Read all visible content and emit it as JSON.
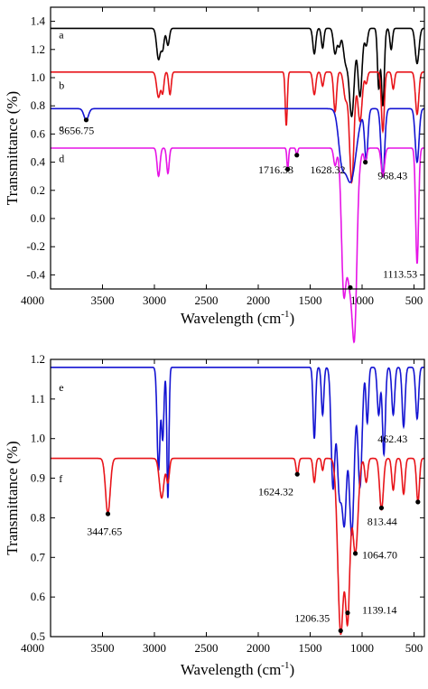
{
  "chart_data": [
    {
      "type": "line",
      "xlabel_main": "Wavelength",
      "xlabel_unit": "(cm",
      "xlabel_sup": "-1",
      "xlabel_close": ")",
      "ylabel": "Transmittance (%)",
      "xlim": [
        4000,
        400
      ],
      "ylim": [
        -0.5,
        1.5
      ],
      "x_ticks": [
        4000,
        3500,
        3000,
        2500,
        2000,
        1500,
        1000,
        500
      ],
      "y_ticks": [
        -0.4,
        -0.2,
        0.0,
        0.2,
        0.4,
        0.6,
        0.8,
        1.0,
        1.2,
        1.4
      ],
      "y_tick_labels": [
        "-0.4",
        "-0.2",
        "0.0",
        "0.2",
        "0.4",
        "0.6",
        "0.8",
        "1.0",
        "1.2",
        "1.4"
      ],
      "series": [
        {
          "name": "a",
          "color": "#000000",
          "baseline": 1.35,
          "label_at": [
            3920,
            1.28
          ],
          "dips": [
            [
              2960,
              0.22,
              18
            ],
            [
              2920,
              0.14,
              14
            ],
            [
              2870,
              0.12,
              14
            ],
            [
              1460,
              0.18,
              14
            ],
            [
              1380,
              0.14,
              12
            ],
            [
              1260,
              0.18,
              16
            ],
            [
              1220,
              0.12,
              14
            ],
            [
              1160,
              0.22,
              22
            ],
            [
              1100,
              0.62,
              25
            ],
            [
              1020,
              0.48,
              20
            ],
            [
              960,
              0.12,
              14
            ],
            [
              840,
              0.42,
              12
            ],
            [
              800,
              0.55,
              14
            ],
            [
              720,
              0.15,
              12
            ],
            [
              470,
              0.25,
              18
            ]
          ]
        },
        {
          "name": "b",
          "color": "#e8141a",
          "baseline": 1.04,
          "label_at": [
            3920,
            0.92
          ],
          "dips": [
            [
              2960,
              0.18,
              18
            ],
            [
              2920,
              0.14,
              12
            ],
            [
              2850,
              0.16,
              12
            ],
            [
              1730,
              0.38,
              10
            ],
            [
              1460,
              0.16,
              14
            ],
            [
              1380,
              0.1,
              12
            ],
            [
              1260,
              0.28,
              14
            ],
            [
              1160,
              0.18,
              18
            ],
            [
              1100,
              0.78,
              22
            ],
            [
              1020,
              0.35,
              20
            ],
            [
              960,
              0.08,
              12
            ],
            [
              800,
              0.42,
              14
            ],
            [
              700,
              0.12,
              12
            ],
            [
              470,
              0.3,
              16
            ]
          ]
        },
        {
          "name": "c",
          "color": "#1414d2",
          "baseline": 0.78,
          "label_at": [
            3920,
            0.62
          ],
          "dips": [
            [
              3657,
              0.08,
              22
            ],
            [
              1200,
              0.25,
              30
            ],
            [
              1113,
              0.52,
              55
            ],
            [
              960,
              0.35,
              16
            ],
            [
              800,
              0.48,
              18
            ],
            [
              470,
              0.38,
              18
            ]
          ]
        },
        {
          "name": "d",
          "color": "#e614e6",
          "baseline": 0.5,
          "label_at": [
            3920,
            0.4
          ],
          "dips": [
            [
              2960,
              0.2,
              14
            ],
            [
              2870,
              0.18,
              12
            ],
            [
              1716,
              0.15,
              8
            ],
            [
              1628,
              0.05,
              8
            ],
            [
              1260,
              0.12,
              14
            ],
            [
              1180,
              0.7,
              20
            ],
            [
              1113,
              0.99,
              45
            ],
            [
              1070,
              0.7,
              20
            ],
            [
              968,
              0.1,
              12
            ],
            [
              800,
              0.2,
              16
            ],
            [
              470,
              0.82,
              14
            ]
          ]
        }
      ],
      "markers": [
        {
          "x": 3656.75,
          "y": 0.7,
          "label": "3656.75",
          "label_at": [
            3920,
            0.6
          ]
        },
        {
          "x": 1716.33,
          "y": 0.35,
          "label": "1716.33",
          "label_at": [
            2000,
            0.32
          ]
        },
        {
          "x": 1628.32,
          "y": 0.45,
          "label": "1628.32",
          "label_at": [
            1500,
            0.32
          ]
        },
        {
          "x": 968.43,
          "y": 0.4,
          "label": "968.43",
          "label_at": [
            850,
            0.28
          ]
        },
        {
          "x": 1113.53,
          "y": -0.49,
          "label": "1113.53",
          "label_at": [
            800,
            -0.42
          ]
        }
      ]
    },
    {
      "type": "line",
      "xlabel_main": "Wavelength",
      "xlabel_unit": "(cm",
      "xlabel_sup": "-1",
      "xlabel_close": ")",
      "ylabel": "Transmittance (%)",
      "xlim": [
        4000,
        400
      ],
      "ylim": [
        0.5,
        1.2
      ],
      "x_ticks": [
        4000,
        3500,
        3000,
        2500,
        2000,
        1500,
        1000,
        500
      ],
      "y_ticks": [
        0.5,
        0.6,
        0.7,
        0.8,
        0.9,
        1.0,
        1.1,
        1.2
      ],
      "y_tick_labels": [
        "0.5",
        "0.6",
        "0.7",
        "0.8",
        "0.9",
        "1.0",
        "1.1",
        "1.2"
      ],
      "series": [
        {
          "name": "e",
          "color": "#1414d2",
          "baseline": 1.18,
          "label_at": [
            3920,
            1.12
          ],
          "dips": [
            [
              2960,
              0.26,
              14
            ],
            [
              2920,
              0.18,
              12
            ],
            [
              2870,
              0.33,
              10
            ],
            [
              1460,
              0.18,
              12
            ],
            [
              1380,
              0.12,
              12
            ],
            [
              1280,
              0.3,
              18
            ],
            [
              1220,
              0.3,
              22
            ],
            [
              1170,
              0.37,
              22
            ],
            [
              1100,
              0.42,
              25
            ],
            [
              1020,
              0.3,
              20
            ],
            [
              950,
              0.14,
              12
            ],
            [
              840,
              0.12,
              14
            ],
            [
              790,
              0.22,
              14
            ],
            [
              700,
              0.12,
              14
            ],
            [
              600,
              0.15,
              14
            ],
            [
              470,
              0.13,
              14
            ]
          ]
        },
        {
          "name": "f",
          "color": "#e8141a",
          "baseline": 0.95,
          "label_at": [
            3920,
            0.89
          ],
          "dips": [
            [
              3448,
              0.14,
              22
            ],
            [
              2930,
              0.1,
              22
            ],
            [
              2870,
              0.06,
              14
            ],
            [
              1624,
              0.04,
              12
            ],
            [
              1460,
              0.06,
              12
            ],
            [
              1380,
              0.03,
              10
            ],
            [
              1206,
              0.44,
              28
            ],
            [
              1139,
              0.39,
              22
            ],
            [
              1065,
              0.24,
              26
            ],
            [
              960,
              0.06,
              14
            ],
            [
              813,
              0.13,
              18
            ],
            [
              700,
              0.08,
              14
            ],
            [
              600,
              0.09,
              14
            ],
            [
              462,
              0.11,
              14
            ]
          ]
        }
      ],
      "markers": [
        {
          "x": 3447.65,
          "y": 0.81,
          "label": "3447.65",
          "label_at": [
            3650,
            0.757
          ]
        },
        {
          "x": 1624.32,
          "y": 0.91,
          "label": "1624.32",
          "label_at": [
            2000,
            0.857
          ]
        },
        {
          "x": 1206.35,
          "y": 0.515,
          "label": "1206.35",
          "label_at": [
            1650,
            0.538
          ]
        },
        {
          "x": 1139.14,
          "y": 0.56,
          "label": "1139.14",
          "label_at": [
            1000,
            0.558
          ]
        },
        {
          "x": 1064.7,
          "y": 0.71,
          "label": "1064.70",
          "label_at": [
            1000,
            0.697
          ]
        },
        {
          "x": 813.44,
          "y": 0.825,
          "label": "813.44",
          "label_at": [
            950,
            0.782
          ]
        },
        {
          "x": 462.43,
          "y": 0.84,
          "label": "462.43",
          "label_at": [
            850,
            0.99
          ]
        }
      ]
    }
  ]
}
